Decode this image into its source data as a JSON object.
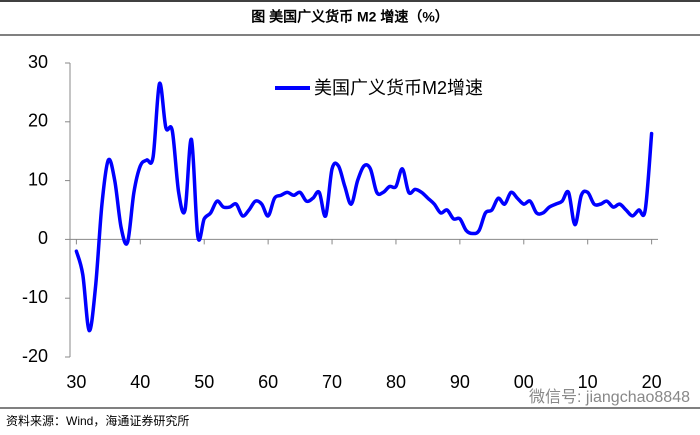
{
  "chart_data": {
    "type": "line",
    "title": "图  美国广义货币 M2 增速（%）",
    "source": "资料来源：Wind，海通证券研究所",
    "watermark": "微信号: jiangchao8848",
    "x": [
      1930,
      1931,
      1932,
      1933,
      1934,
      1935,
      1936,
      1937,
      1938,
      1939,
      1940,
      1941,
      1942,
      1943,
      1944,
      1945,
      1946,
      1947,
      1948,
      1949,
      1950,
      1951,
      1952,
      1953,
      1954,
      1955,
      1956,
      1957,
      1958,
      1959,
      1960,
      1961,
      1962,
      1963,
      1964,
      1965,
      1966,
      1967,
      1968,
      1969,
      1970,
      1971,
      1972,
      1973,
      1974,
      1975,
      1976,
      1977,
      1978,
      1979,
      1980,
      1981,
      1982,
      1983,
      1984,
      1985,
      1986,
      1987,
      1988,
      1989,
      1990,
      1991,
      1992,
      1993,
      1994,
      1995,
      1996,
      1997,
      1998,
      1999,
      2000,
      2001,
      2002,
      2003,
      2004,
      2005,
      2006,
      2007,
      2008,
      2009,
      2010,
      2011,
      2012,
      2013,
      2014,
      2015,
      2016,
      2017,
      2018,
      2019,
      2020
    ],
    "series": [
      {
        "name": "美国广义货币M2增速",
        "color": "#0000ff",
        "values": [
          -2,
          -6,
          -15.5,
          -8,
          6,
          13.5,
          10,
          2,
          -0.5,
          8,
          12.5,
          13.5,
          14,
          26.5,
          19,
          18.5,
          8,
          5,
          17,
          0.5,
          3.5,
          4.5,
          6.5,
          5.5,
          5.5,
          6,
          4,
          5,
          6.5,
          6,
          4,
          7,
          7.5,
          8,
          7.5,
          8,
          6.5,
          7,
          8,
          4,
          12,
          12.5,
          9,
          6,
          10,
          12.5,
          12,
          8,
          8,
          9,
          9,
          12,
          8,
          8.5,
          8,
          7,
          6,
          4.5,
          5,
          3.5,
          3.5,
          1.5,
          1,
          1.5,
          4.5,
          5,
          7,
          6,
          8,
          7,
          6,
          6.5,
          4.5,
          4.5,
          5.5,
          6,
          6.5,
          8,
          2.5,
          7.5,
          8,
          6,
          6,
          6.5,
          5.5,
          6,
          5,
          4,
          5,
          5,
          18
        ]
      }
    ],
    "xlim": [
      1929,
      2021
    ],
    "xticks": [
      {
        "value": 1930,
        "label": "30"
      },
      {
        "value": 1940,
        "label": "40"
      },
      {
        "value": 1950,
        "label": "50"
      },
      {
        "value": 1960,
        "label": "60"
      },
      {
        "value": 1970,
        "label": "70"
      },
      {
        "value": 1980,
        "label": "80"
      },
      {
        "value": 1990,
        "label": "90"
      },
      {
        "value": 2000,
        "label": "00"
      },
      {
        "value": 2010,
        "label": "10"
      },
      {
        "value": 2020,
        "label": "20"
      }
    ],
    "ylim": [
      -20,
      30
    ],
    "yticks": [
      -20,
      -10,
      0,
      10,
      20,
      30
    ]
  }
}
